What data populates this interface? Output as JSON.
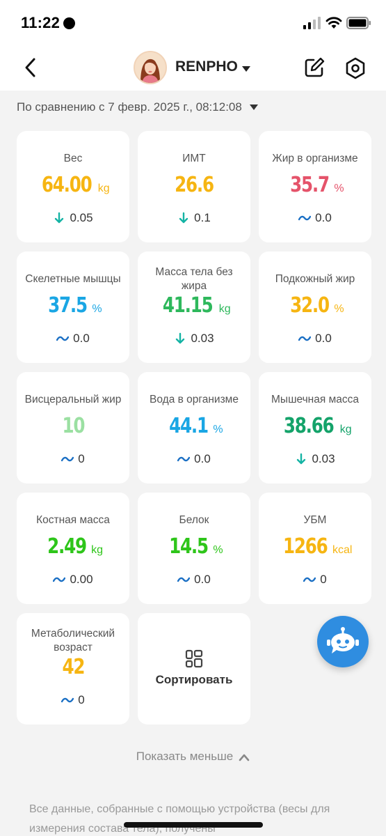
{
  "status_bar": {
    "time": "11:22"
  },
  "header": {
    "brand": "RENPHO"
  },
  "compare": {
    "label": "По сравнению с 7 февр. 2025 г., 08:12:08"
  },
  "colors": {
    "yellow": "#f6b512",
    "red": "#e5536a",
    "blue": "#1aa6e4",
    "green": "#2eb85c",
    "teal_green": "#14a36a",
    "light_green": "#9be0a2",
    "bright_green": "#2ec51a",
    "delta_down": "#14b3a4",
    "delta_flat": "#1a6fc4"
  },
  "metrics": [
    {
      "label": "Вес",
      "value": "64.00",
      "unit": "kg",
      "color": "#f6b512",
      "trend": "down",
      "delta": "0.05"
    },
    {
      "label": "ИМТ",
      "value": "26.6",
      "unit": "",
      "color": "#f6b512",
      "trend": "down",
      "delta": "0.1"
    },
    {
      "label": "Жир в организме",
      "value": "35.7",
      "unit": "%",
      "color": "#e5536a",
      "trend": "flat",
      "delta": "0.0"
    },
    {
      "label": "Скелетные мышцы",
      "value": "37.5",
      "unit": "%",
      "color": "#1aa6e4",
      "trend": "flat",
      "delta": "0.0"
    },
    {
      "label": "Масса тела без жира",
      "value": "41.15",
      "unit": "kg",
      "color": "#2eb85c",
      "trend": "down",
      "delta": "0.03"
    },
    {
      "label": "Подкожный жир",
      "value": "32.0",
      "unit": "%",
      "color": "#f6b512",
      "trend": "flat",
      "delta": "0.0"
    },
    {
      "label": "Висцеральный жир",
      "value": "10",
      "unit": "",
      "color": "#9be0a2",
      "trend": "flat",
      "delta": "0"
    },
    {
      "label": "Вода в организме",
      "value": "44.1",
      "unit": "%",
      "color": "#1aa6e4",
      "trend": "flat",
      "delta": "0.0"
    },
    {
      "label": "Мышечная масса",
      "value": "38.66",
      "unit": "kg",
      "color": "#14a36a",
      "trend": "down",
      "delta": "0.03"
    },
    {
      "label": "Костная масса",
      "value": "2.49",
      "unit": "kg",
      "color": "#2ec51a",
      "trend": "flat",
      "delta": "0.00"
    },
    {
      "label": "Белок",
      "value": "14.5",
      "unit": "%",
      "color": "#2ec51a",
      "trend": "flat",
      "delta": "0.0"
    },
    {
      "label": "УБМ",
      "value": "1266",
      "unit": "kcal",
      "color": "#f6b512",
      "trend": "flat",
      "delta": "0"
    },
    {
      "label": "Метаболический возраст",
      "value": "42",
      "unit": "",
      "color": "#f6b512",
      "trend": "flat",
      "delta": "0"
    }
  ],
  "sort_button": {
    "label": "Сортировать"
  },
  "show_less": {
    "label": "Показать меньше"
  },
  "disclaimer": {
    "text": "Все данные, собранные с помощью устройства (весы для измерения состава тела), получены"
  }
}
